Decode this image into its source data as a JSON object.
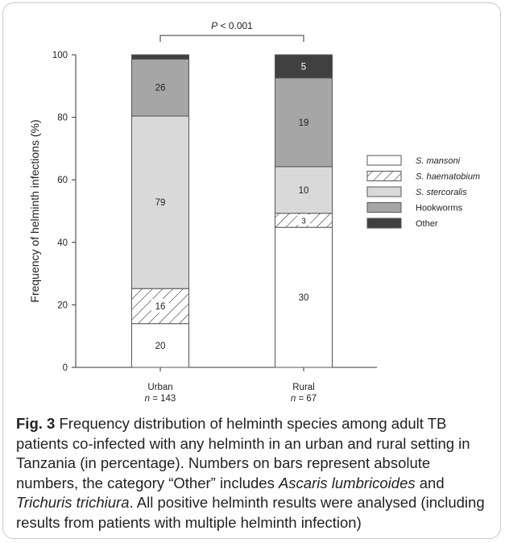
{
  "chart_data": {
    "type": "bar",
    "stacked": true,
    "categories": [
      "Urban",
      "Rural"
    ],
    "category_notes": [
      "n = 143",
      "n = 67"
    ],
    "ylabel": "Frequency of helminth infections (%)",
    "xlabel": "",
    "ylim": [
      0,
      100
    ],
    "yticks": [
      0,
      20,
      40,
      60,
      80,
      100
    ],
    "significance": "P < 0.001",
    "legend_position": "right",
    "series": [
      {
        "name": "S. mansoni",
        "percent": [
          14.0,
          44.8
        ],
        "counts": [
          "20",
          "30"
        ],
        "fill": "#ffffff",
        "pattern": "none"
      },
      {
        "name": "S. haematobium",
        "percent": [
          11.2,
          4.5
        ],
        "counts": [
          "16",
          "3"
        ],
        "fill": "#ffffff",
        "pattern": "hatch"
      },
      {
        "name": "S. stercoralis",
        "percent": [
          55.2,
          14.9
        ],
        "counts": [
          "79",
          "10"
        ],
        "fill": "#d9d9d9",
        "pattern": "none"
      },
      {
        "name": "Hookworms",
        "percent": [
          18.2,
          28.4
        ],
        "counts": [
          "26",
          "19"
        ],
        "fill": "#a6a6a6",
        "pattern": "none"
      },
      {
        "name": "Other",
        "percent": [
          1.4,
          7.4
        ],
        "counts": [
          "",
          "5"
        ],
        "fill": "#404040",
        "pattern": "none"
      }
    ]
  },
  "caption": {
    "label": "Fig. 3",
    "parts": [
      {
        "t": " Frequency distribution of helminth species among adult TB patients co-infected with any helminth in an urban and rural setting in Tanzania (in percentage). Numbers on bars represent absolute numbers, the category “Other” includes ",
        "i": false
      },
      {
        "t": "Ascaris lumbricoides",
        "i": true
      },
      {
        "t": " and ",
        "i": false
      },
      {
        "t": "Trichuris trichiura",
        "i": true
      },
      {
        "t": ". All positive helminth results were analysed (including results from patients with multiple helminth infection)",
        "i": false
      }
    ]
  }
}
